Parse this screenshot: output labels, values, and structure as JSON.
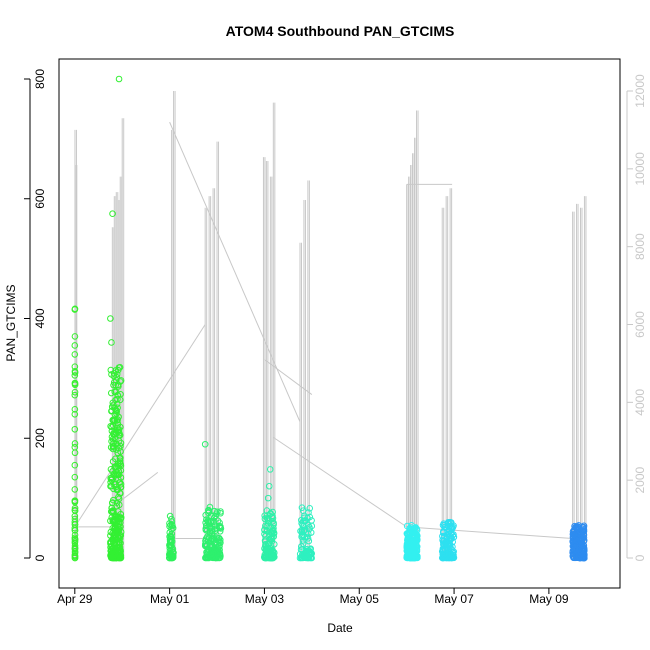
{
  "chart_data": {
    "type": "scatter",
    "title": "ATOM4 Southbound PAN_GTCIMS",
    "xlabel": "Date",
    "ylabel": "PAN_GTCIMS",
    "xlim": [
      "2018-04-28T16:00",
      "2018-05-10T12:00"
    ],
    "ylim": [
      0,
      800
    ],
    "y2lim": [
      0,
      12000
    ],
    "x_ticks": [
      {
        "date": "2018-04-29",
        "label": "Apr 29"
      },
      {
        "date": "2018-05-01",
        "label": "May 01"
      },
      {
        "date": "2018-05-03",
        "label": "May 03"
      },
      {
        "date": "2018-05-05",
        "label": "May 05"
      },
      {
        "date": "2018-05-07",
        "label": "May 07"
      },
      {
        "date": "2018-05-09",
        "label": "May 09"
      }
    ],
    "y_ticks": [
      0,
      200,
      400,
      600,
      800
    ],
    "y2_ticks": [
      0,
      2000,
      4000,
      6000,
      8000,
      10000,
      12000
    ],
    "grid": false,
    "marker": "open-circle",
    "colors": {
      "apr29": "#38f02e",
      "apr30": "#33f033",
      "may01": "#2ef05a",
      "may02": "#2ef06e",
      "may03": "#2ef0a8",
      "may04": "#2ef0c0",
      "may06": "#33f0f0",
      "may07": "#2ee0f0",
      "may09": "#2e8cf0",
      "altitude": "#c8c8c8"
    },
    "series": [
      {
        "color_key": "apr29",
        "cluster": {
          "x0": "2018-04-29T00:00",
          "x1": "2018-04-29T00:10",
          "y_max": 420,
          "n": 40
        },
        "values": [
          [
            0,
            415
          ],
          [
            0.02,
            355
          ],
          [
            0.03,
            340
          ],
          [
            0.04,
            305
          ],
          [
            0.05,
            272
          ],
          [
            0.06,
            240
          ],
          [
            0.07,
            215
          ],
          [
            0.08,
            185
          ],
          [
            0.09,
            155
          ],
          [
            0.1,
            135
          ],
          [
            0.11,
            95
          ],
          [
            0.12,
            70
          ],
          [
            0.13,
            60
          ],
          [
            0.14,
            50
          ]
        ]
      },
      {
        "color_key": "apr30",
        "cluster": {
          "x0": "2018-04-29T18:00",
          "x1": "2018-04-29T23:30",
          "y_max": 320,
          "n": 320
        },
        "values": [
          [
            0.8,
            800
          ],
          [
            0.2,
            575
          ],
          [
            0.0,
            400
          ],
          [
            0.1,
            360
          ]
        ]
      },
      {
        "color_key": "may01",
        "cluster": {
          "x0": "2018-04-30T23:50",
          "x1": "2018-05-01T02:00",
          "y_max": 70,
          "n": 60
        },
        "values": [
          [
            0.2,
            70
          ],
          [
            0.5,
            65
          ],
          [
            0.9,
            50
          ]
        ]
      },
      {
        "color_key": "may02",
        "cluster": {
          "x0": "2018-05-01T18:00",
          "x1": "2018-05-02T02:00",
          "y_max": 85,
          "n": 160
        },
        "values": [
          [
            0.0,
            190
          ],
          [
            0.3,
            85
          ]
        ]
      },
      {
        "color_key": "may03",
        "cluster": {
          "x0": "2018-05-02T23:50",
          "x1": "2018-05-03T05:00",
          "y_max": 80,
          "n": 130
        },
        "values": [
          [
            0.6,
            148
          ],
          [
            0.5,
            120
          ],
          [
            0.4,
            100
          ]
        ]
      },
      {
        "color_key": "may04",
        "cluster": {
          "x0": "2018-05-03T18:00",
          "x1": "2018-05-04T00:00",
          "y_max": 85,
          "n": 90
        },
        "values": []
      },
      {
        "color_key": "may06",
        "cluster": {
          "x0": "2018-05-06T00:00",
          "x1": "2018-05-06T05:30",
          "y_max": 55,
          "n": 220
        },
        "values": []
      },
      {
        "color_key": "may07",
        "cluster": {
          "x0": "2018-05-06T18:00",
          "x1": "2018-05-07T00:00",
          "y_max": 60,
          "n": 130
        },
        "values": []
      },
      {
        "color_key": "may09",
        "cluster": {
          "x0": "2018-05-09T12:00",
          "x1": "2018-05-09T18:00",
          "y_max": 55,
          "n": 220
        },
        "values": []
      }
    ],
    "altitude_spikes": [
      {
        "x": "2018-04-29T00:05",
        "top": 11000
      },
      {
        "x": "2018-04-29T00:15",
        "top": 10100
      },
      {
        "x": "2018-04-29T19:00",
        "top": 8500
      },
      {
        "x": "2018-04-29T20:00",
        "top": 9300
      },
      {
        "x": "2018-04-29T21:00",
        "top": 9400
      },
      {
        "x": "2018-04-29T22:00",
        "top": 9200
      },
      {
        "x": "2018-04-29T23:00",
        "top": 9800
      },
      {
        "x": "2018-04-30T00:00",
        "top": 11300
      },
      {
        "x": "2018-05-01T01:00",
        "top": 11000
      },
      {
        "x": "2018-05-01T02:00",
        "top": 12000
      },
      {
        "x": "2018-05-01T18:00",
        "top": 9000
      },
      {
        "x": "2018-05-01T20:00",
        "top": 9300
      },
      {
        "x": "2018-05-01T22:00",
        "top": 9500
      },
      {
        "x": "2018-05-02T00:00",
        "top": 10700
      },
      {
        "x": "2018-05-02T23:30",
        "top": 10300
      },
      {
        "x": "2018-05-03T01:00",
        "top": 10200
      },
      {
        "x": "2018-05-03T03:00",
        "top": 9800
      },
      {
        "x": "2018-05-03T04:30",
        "top": 11700
      },
      {
        "x": "2018-05-03T18:00",
        "top": 8100
      },
      {
        "x": "2018-05-03T20:00",
        "top": 9200
      },
      {
        "x": "2018-05-03T22:00",
        "top": 9700
      },
      {
        "x": "2018-05-06T00:00",
        "top": 9600
      },
      {
        "x": "2018-05-06T01:00",
        "top": 9800
      },
      {
        "x": "2018-05-06T02:00",
        "top": 10100
      },
      {
        "x": "2018-05-06T03:00",
        "top": 10400
      },
      {
        "x": "2018-05-06T04:00",
        "top": 10800
      },
      {
        "x": "2018-05-06T05:00",
        "top": 11500
      },
      {
        "x": "2018-05-06T18:00",
        "top": 9000
      },
      {
        "x": "2018-05-06T20:00",
        "top": 9300
      },
      {
        "x": "2018-05-06T22:00",
        "top": 9500
      },
      {
        "x": "2018-05-09T12:00",
        "top": 8900
      },
      {
        "x": "2018-05-09T14:00",
        "top": 9100
      },
      {
        "x": "2018-05-09T16:00",
        "top": 9000
      },
      {
        "x": "2018-05-09T18:00",
        "top": 9300
      }
    ],
    "transit_lines": [
      [
        [
          "2018-04-29T00:00",
          800
        ],
        [
          "2018-04-29T18:00",
          800
        ]
      ],
      [
        [
          "2018-04-29T00:00",
          800
        ],
        [
          "2018-05-01T18:00",
          6000
        ]
      ],
      [
        [
          "2018-04-30T00:00",
          1500
        ],
        [
          "2018-04-30T18:00",
          2200
        ]
      ],
      [
        [
          "2018-05-01T00:00",
          11200
        ],
        [
          "2018-05-03T18:00",
          3500
        ]
      ],
      [
        [
          "2018-05-01T00:00",
          500
        ],
        [
          "2018-05-01T18:00",
          500
        ]
      ],
      [
        [
          "2018-05-03T00:00",
          5100
        ],
        [
          "2018-05-04T00:00",
          4200
        ]
      ],
      [
        [
          "2018-05-03T04:30",
          3100
        ],
        [
          "2018-05-06T00:00",
          800
        ]
      ],
      [
        [
          "2018-05-06T00:00",
          9600
        ],
        [
          "2018-05-06T23:00",
          9600
        ]
      ],
      [
        [
          "2018-05-06T00:00",
          800
        ],
        [
          "2018-05-09T12:00",
          500
        ]
      ]
    ]
  }
}
